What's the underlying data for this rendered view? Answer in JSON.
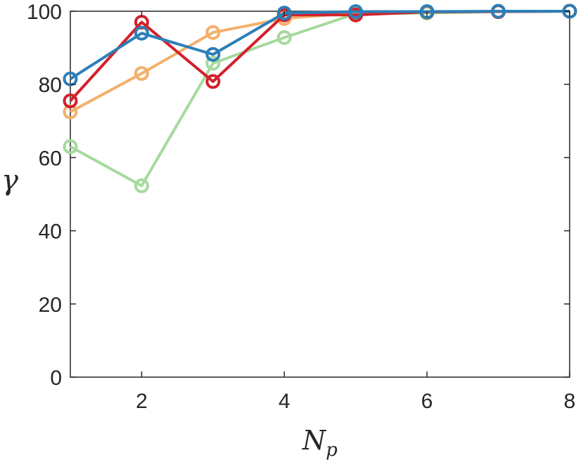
{
  "chart_data": {
    "type": "line",
    "title": "",
    "xlabel": "N",
    "xlabel_sub": "p",
    "ylabel": "γ",
    "xlim": [
      1,
      8
    ],
    "ylim": [
      0,
      100
    ],
    "xticks": [
      2,
      4,
      6,
      8
    ],
    "yticks": [
      0,
      20,
      40,
      60,
      80,
      100
    ],
    "grid": false,
    "legend": "none",
    "marker": "open-circle",
    "x": [
      1,
      2,
      3,
      4,
      5,
      6,
      7,
      8
    ],
    "series": [
      {
        "color": "#f4b06b",
        "values": [
          72.5,
          83.0,
          94.2,
          98.0,
          99.6,
          99.7,
          99.9,
          100.0
        ]
      },
      {
        "color": "#a6d99e",
        "values": [
          63.0,
          52.3,
          85.8,
          92.8,
          99.3,
          99.5,
          99.9,
          100.0
        ]
      },
      {
        "color": "#d4202a",
        "values": [
          75.5,
          97.0,
          80.8,
          99.0,
          99.0,
          99.8,
          99.9,
          100.0
        ]
      },
      {
        "color": "#2c7fb8",
        "values": [
          81.5,
          94.0,
          88.2,
          99.5,
          99.9,
          99.9,
          100.0,
          100.0
        ]
      }
    ]
  }
}
